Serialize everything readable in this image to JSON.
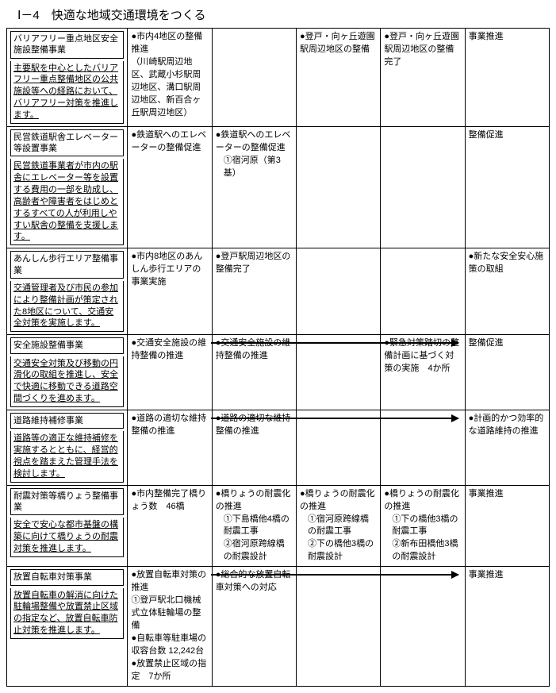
{
  "title": "Ⅰ－4　快適な地域交通環境をつくる",
  "rows": [
    {
      "label": "バリアフリー重点地区安全施設整備事業",
      "desc": "主要駅を中心としたバリアフリー重点整備地区の公共施設等への経路において、バリアフリー対策を推進します。",
      "c2": "●市内4地区の整備推進\n（川崎駅周辺地区、武蔵小杉駅周辺地区、溝口駅周辺地区、新百合ヶ丘駅周辺地区）",
      "c3": "",
      "c4": "●登戸・向ヶ丘遊園駅周辺地区の整備",
      "c5": "●登戸・向ヶ丘遊園駅周辺地区の整備完了",
      "c6": "事業推進",
      "underline": true
    },
    {
      "label": "民営鉄道駅舎エレベーター等設置事業",
      "desc": "民営鉄道事業者が市内の駅舎にエレベーター等を設置する費用の一部を助成し、高齢者や障害者をはじめとするすべての人が利用しやすい駅舎の整備を支援します。",
      "c2": "●鉄道駅へのエレベーターの整備促進",
      "c3": "●鉄道駅へのエレベーターの整備促進\n　①宿河原（第3基）",
      "c4": "",
      "c5": "",
      "c6": "整備促進",
      "underline": true
    },
    {
      "label": "あんしん歩行エリア整備事業",
      "desc": "交通管理者及び市民の参加により整備計画が策定された8地区について、交通安全対策を実施します。",
      "c2": "●市内8地区のあんしん歩行エリアの事業実施",
      "c3": "●登戸駅周辺地区の整備完了",
      "c4": "",
      "c5": "",
      "c6": "●新たな安全安心施策の取組",
      "underline": true
    },
    {
      "label": "安全施設整備事業",
      "desc": "交通安全対策及び移動の円滑化の取組を推進し、安全で快適に移動できる道路空間づくりを進めます。",
      "c2": "●交通安全施設の維持整備の推進",
      "c3": "●交通安全施設の維持整備の推進",
      "c4": "",
      "c5": "●緊急対策踏切の整備計画に基づく対策の実施　4か所",
      "c6": "整備促進",
      "underline": true,
      "arrow_top": true
    },
    {
      "label": "道路維持補修事業",
      "desc": "道路等の適正な維持補修を実施するとともに、経営的視点を踏まえた管理手法を検討します。",
      "c2": "●道路の適切な維持整備の推進",
      "c3": "●道路の適切な維持整備の推進",
      "c4": "",
      "c5": "",
      "c6": "●計画的かつ効率的な道路維持の推進",
      "underline": true,
      "arrow_full": true
    },
    {
      "label": "耐震対策等橋りょう整備事業",
      "desc": "安全で安心な都市基盤の構築に向けて橋りょうの耐震対策を推進します。",
      "c2": "●市内整備完了橋りょう数　46橋",
      "c3": "●橋りょうの耐震化の推進\n　①下島橋他4橋の耐震工事\n　②宿河原跨線橋の耐震設計",
      "c4": "●橋りょうの耐震化の推進\n　①宿河原跨線橋の耐震工事\n　②下の橋他3橋の耐震設計",
      "c5": "●橋りょうの耐震化の推進\n　①下の橋他3橋の耐震工事\n　②新布田橋他3橋の耐震設計",
      "c6": "事業推進",
      "underline": true
    },
    {
      "label": "放置自転車対策事業",
      "desc": "放置自転車の解消に向けた駐輪場整備や放置禁止区域の指定など、放置自転車防止対策を推進します。",
      "c2": "●放置自転車対策の推進\n①登戸駅北口機械式立体駐輪場の整備\n●自転車等駐車場の収容台数 12,242台\n●放置禁止区域の指定　7か所",
      "c3": "●総合的な放置自転車対策への対応",
      "c4": "",
      "c5": "",
      "c6": "事業推進",
      "underline": true,
      "arrow_full": true
    }
  ]
}
